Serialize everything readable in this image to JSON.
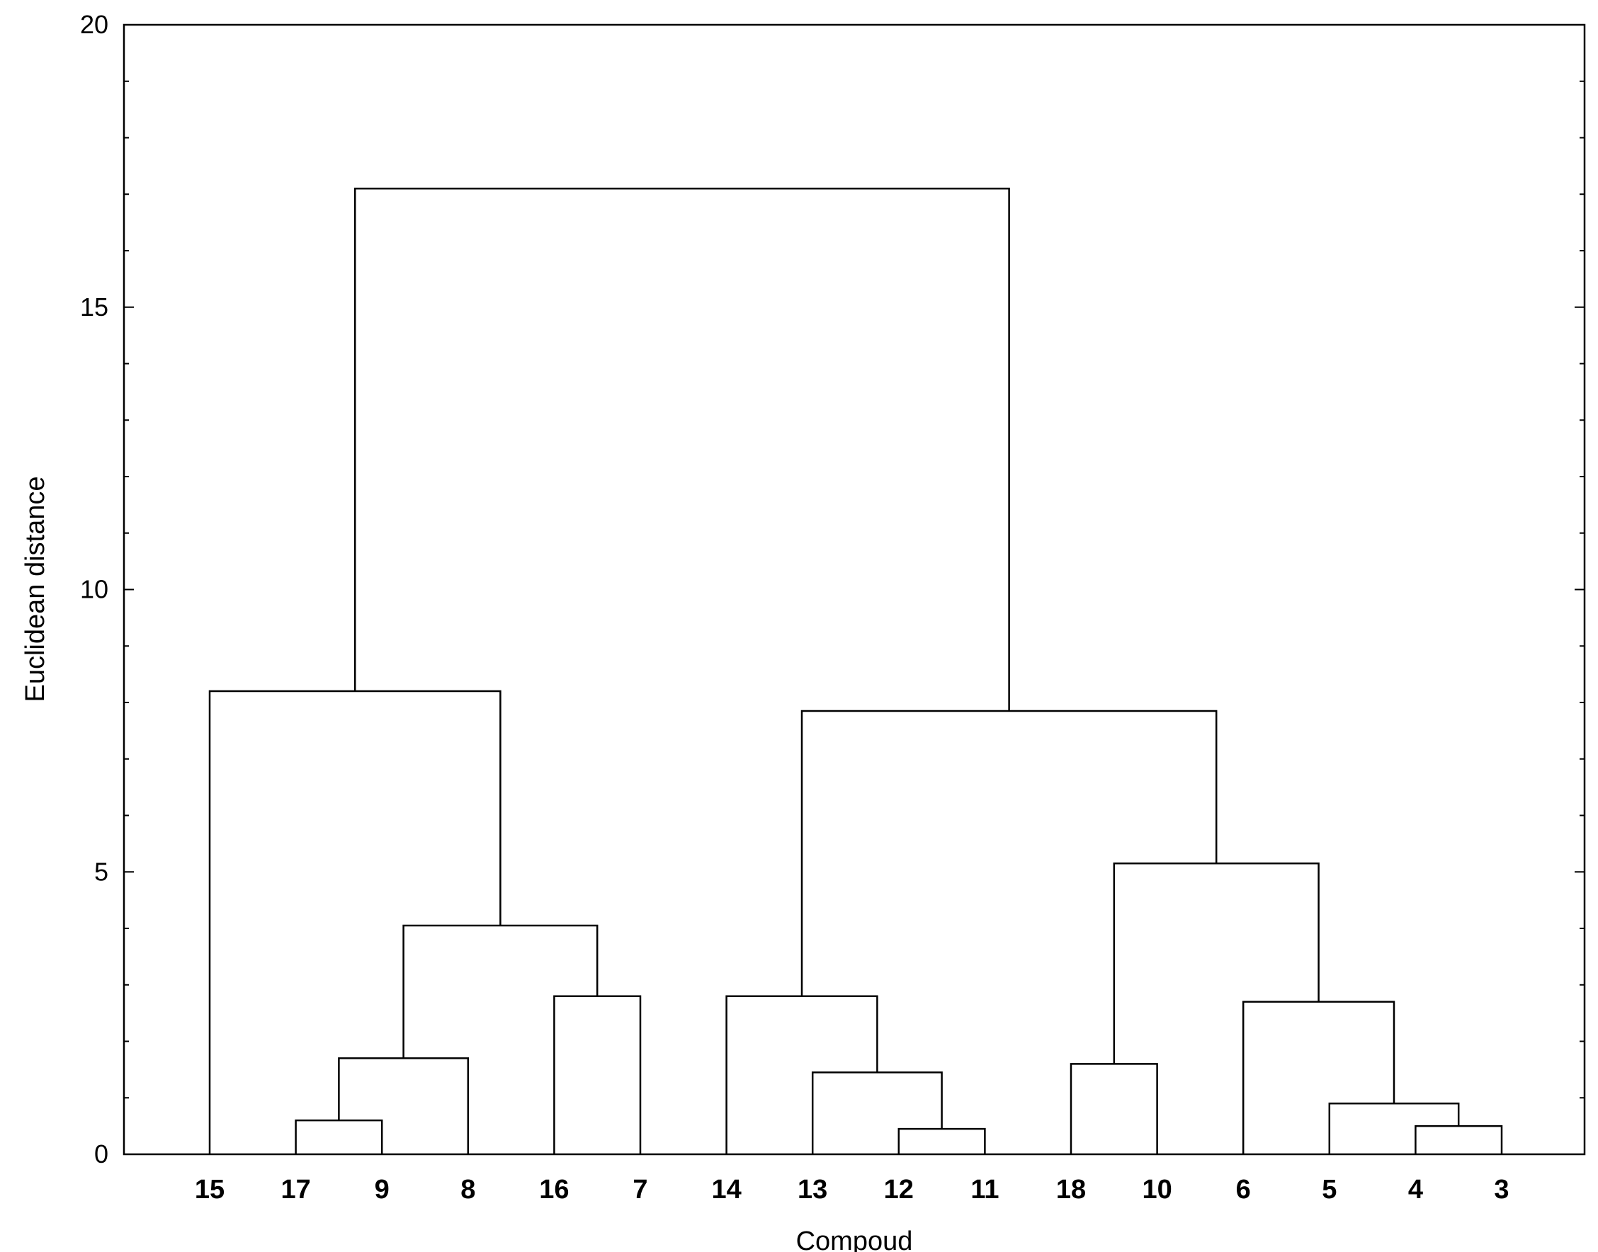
{
  "chart_data": {
    "type": "dendrogram",
    "xlabel": "Compoud",
    "ylabel": "Euclidean distance",
    "ylim": [
      0,
      20
    ],
    "yticks": [
      0,
      5,
      10,
      15,
      20
    ],
    "leaves": [
      "15",
      "17",
      "9",
      "8",
      "16",
      "7",
      "14",
      "13",
      "12",
      "11",
      "18",
      "10",
      "6",
      "5",
      "4",
      "3"
    ],
    "merges": [
      {
        "id": "a",
        "left": "17",
        "right": "9",
        "height": 0.6
      },
      {
        "id": "b",
        "left": "a",
        "right": "8",
        "height": 1.7
      },
      {
        "id": "c",
        "left": "16",
        "right": "7",
        "height": 2.8
      },
      {
        "id": "d",
        "left": "b",
        "right": "c",
        "height": 4.05
      },
      {
        "id": "e",
        "left": "15",
        "right": "d",
        "height": 8.2
      },
      {
        "id": "f",
        "left": "12",
        "right": "11",
        "height": 0.45
      },
      {
        "id": "g",
        "left": "13",
        "right": "f",
        "height": 1.45
      },
      {
        "id": "h",
        "left": "14",
        "right": "g",
        "height": 2.8
      },
      {
        "id": "i",
        "left": "18",
        "right": "10",
        "height": 1.6
      },
      {
        "id": "j",
        "left": "4",
        "right": "3",
        "height": 0.5
      },
      {
        "id": "k",
        "left": "5",
        "right": "j",
        "height": 0.9
      },
      {
        "id": "l",
        "left": "6",
        "right": "k",
        "height": 2.7
      },
      {
        "id": "m",
        "left": "i",
        "right": "l",
        "height": 5.15
      },
      {
        "id": "n",
        "left": "h",
        "right": "m",
        "height": 7.85
      },
      {
        "id": "o",
        "left": "e",
        "right": "n",
        "height": 17.1
      }
    ]
  }
}
